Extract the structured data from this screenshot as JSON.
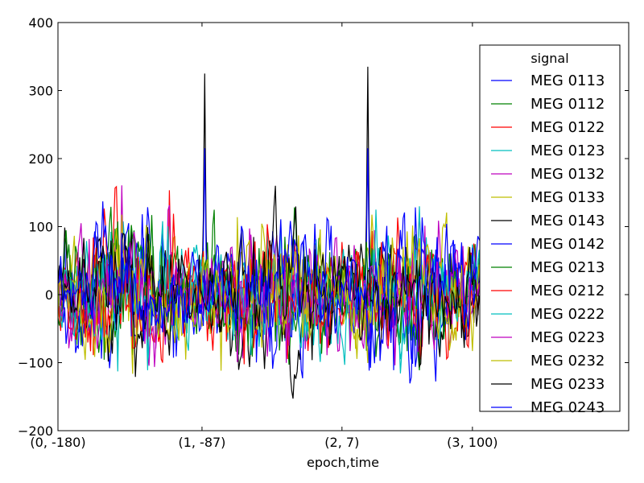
{
  "chart_data": {
    "type": "line",
    "xlabel": "epoch,time",
    "ylabel": "",
    "ylim": [
      -200,
      400
    ],
    "yticks": [
      -200,
      -100,
      0,
      100,
      200,
      300,
      400
    ],
    "ytick_labels": [
      "−200",
      "−100",
      "0",
      "100",
      "200",
      "300",
      "400"
    ],
    "xticks": [
      {
        "index": 0,
        "label": "(0, -180)"
      },
      {
        "index": 106,
        "label": "(1, -87)"
      },
      {
        "index": 209,
        "label": "(2, 7)"
      },
      {
        "index": 305,
        "label": "(3, 100)"
      }
    ],
    "xlim": [
      0,
      420
    ],
    "n_samples": 380,
    "epoch_boundaries": [
      0,
      106,
      209,
      305
    ],
    "peaks": [
      {
        "index": 108,
        "value": 325,
        "series": "MEG 0143"
      },
      {
        "index": 108,
        "value": 215,
        "series": "MEG 0142"
      },
      {
        "index": 228,
        "value": 335,
        "series": "MEG 0143"
      },
      {
        "index": 228,
        "value": 215,
        "series": "MEG 0142"
      }
    ],
    "grid": false,
    "legend": {
      "title": "signal",
      "placement": "upper-right",
      "entries": [
        "MEG 0113",
        "MEG 0112",
        "MEG 0122",
        "MEG 0123",
        "MEG 0132",
        "MEG 0133",
        "MEG 0143",
        "MEG 0142",
        "MEG 0213",
        "MEG 0212",
        "MEG 0222",
        "MEG 0223",
        "MEG 0232",
        "MEG 0233",
        "MEG 0243"
      ]
    },
    "series": [
      {
        "name": "MEG 0113",
        "color": "#0000ff"
      },
      {
        "name": "MEG 0112",
        "color": "#008000"
      },
      {
        "name": "MEG 0122",
        "color": "#ff0000"
      },
      {
        "name": "MEG 0123",
        "color": "#00bfbf"
      },
      {
        "name": "MEG 0132",
        "color": "#bf00bf"
      },
      {
        "name": "MEG 0133",
        "color": "#bfbf00"
      },
      {
        "name": "MEG 0143",
        "color": "#000000"
      },
      {
        "name": "MEG 0142",
        "color": "#0000ff"
      },
      {
        "name": "MEG 0213",
        "color": "#008000"
      },
      {
        "name": "MEG 0212",
        "color": "#ff0000"
      },
      {
        "name": "MEG 0222",
        "color": "#00bfbf"
      },
      {
        "name": "MEG 0223",
        "color": "#bf00bf"
      },
      {
        "name": "MEG 0232",
        "color": "#bfbf00"
      },
      {
        "name": "MEG 0233",
        "color": "#000000"
      },
      {
        "name": "MEG 0243",
        "color": "#0000ff"
      }
    ]
  }
}
